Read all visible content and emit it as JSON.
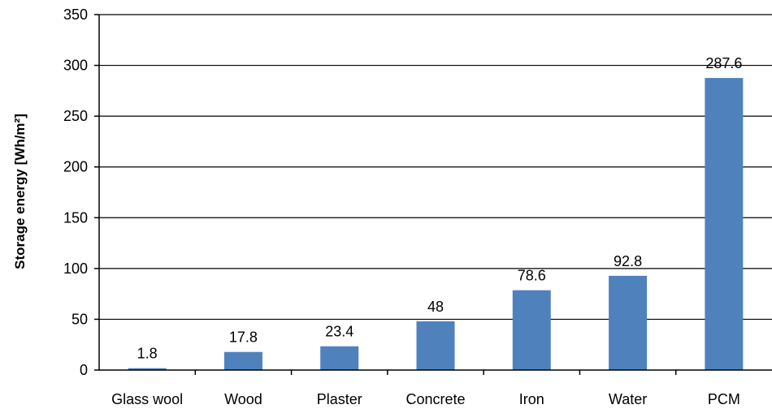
{
  "chart_data": {
    "type": "bar",
    "title": "",
    "xlabel": "",
    "ylabel": "Storage energy [Wh/m²]",
    "categories": [
      "Glass wool",
      "Wood",
      "Plaster",
      "Concrete",
      "Iron",
      "Water",
      "PCM"
    ],
    "values": [
      1.8,
      17.8,
      23.4,
      48,
      78.6,
      92.8,
      287.6
    ],
    "data_labels": [
      "1.8",
      "17.8",
      "23.4",
      "48",
      "78.6",
      "92.8",
      "287.6"
    ],
    "ylim": [
      0,
      350
    ],
    "yticks": [
      0,
      50,
      100,
      150,
      200,
      250,
      300,
      350
    ],
    "grid": true,
    "legend": "none",
    "bar_color": "#4f81bd",
    "grid_color": "#000000"
  }
}
